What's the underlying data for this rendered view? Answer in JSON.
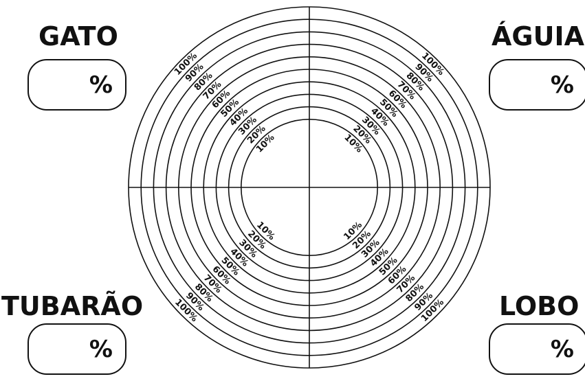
{
  "quadrants": {
    "top_left": {
      "title": "GATO",
      "unit": "%"
    },
    "top_right": {
      "title": "ÁGUIA",
      "unit": "%"
    },
    "bottom_left": {
      "title": "TUBARÃO",
      "unit": "%"
    },
    "bottom_right": {
      "title": "LOBO",
      "unit": "%"
    }
  },
  "rings": {
    "labels": [
      "10%",
      "20%",
      "30%",
      "40%",
      "50%",
      "60%",
      "70%",
      "80%",
      "90%",
      "100%"
    ]
  },
  "colors": {
    "line": "#111111",
    "background": "#ffffff"
  }
}
